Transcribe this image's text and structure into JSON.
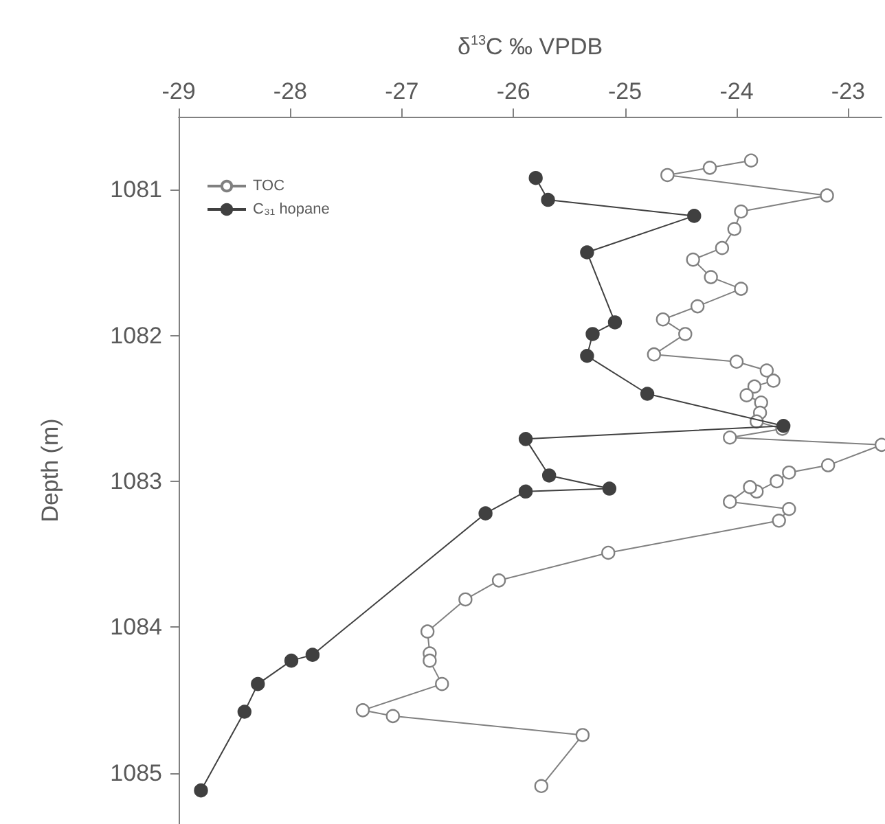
{
  "chart_data": {
    "type": "line",
    "xlabel": "δ$^{13}$C ‰ VPDB",
    "ylabel": "Depth (m)",
    "xlim": [
      -29,
      -22.7
    ],
    "xticks": [
      -29,
      -28,
      -27,
      -26,
      -25,
      -24,
      -23
    ],
    "ylim": [
      1085.35,
      1080.5
    ],
    "yticks": [
      1081,
      1082,
      1083,
      1084,
      1085
    ],
    "grid": false,
    "legend": "top left",
    "marker": "circle",
    "line_style": "solid",
    "series": [
      {
        "name": "TOC",
        "color": "#808080",
        "x": [
          -23.87,
          -24.24,
          -24.62,
          -23.19,
          -23.96,
          -24.02,
          -24.13,
          -24.39,
          -24.23,
          -23.96,
          -24.35,
          -24.66,
          -24.46,
          -24.74,
          -24.0,
          -23.73,
          -23.67,
          -23.84,
          -23.91,
          -23.78,
          -23.79,
          -23.82,
          -23.59,
          -24.06,
          -22.7,
          -23.18,
          -23.53,
          -23.64,
          -23.82,
          -23.88,
          -24.06,
          -23.53,
          -23.62,
          -25.15,
          -26.13,
          -26.43,
          -26.77,
          -26.75,
          -26.75,
          -26.64,
          -27.35,
          -27.08,
          -25.38,
          -25.75
        ],
        "values": [
          1080.8,
          1080.85,
          1080.9,
          1081.04,
          1081.15,
          1081.27,
          1081.4,
          1081.48,
          1081.6,
          1081.68,
          1081.8,
          1081.89,
          1081.99,
          1082.13,
          1082.18,
          1082.24,
          1082.31,
          1082.35,
          1082.41,
          1082.46,
          1082.53,
          1082.59,
          1082.64,
          1082.7,
          1082.75,
          1082.89,
          1082.94,
          1083.0,
          1083.07,
          1083.04,
          1083.14,
          1083.19,
          1083.27,
          1083.49,
          1083.68,
          1083.81,
          1084.03,
          1084.18,
          1084.23,
          1084.39,
          1084.57,
          1084.61,
          1084.74,
          1085.09
        ]
      },
      {
        "name": "C₃₁ hopane",
        "color": "#404040",
        "x": [
          -25.8,
          -25.69,
          -24.38,
          -25.34,
          -25.09,
          -25.29,
          -25.34,
          -24.8,
          -23.58,
          -25.89,
          -25.68,
          -25.14,
          -25.89,
          -26.25,
          -27.8,
          -27.99,
          -28.29,
          -28.41,
          -28.8
        ],
        "values": [
          1080.92,
          1081.07,
          1081.18,
          1081.43,
          1081.91,
          1081.99,
          1082.14,
          1082.4,
          1082.62,
          1082.71,
          1082.96,
          1083.05,
          1083.07,
          1083.22,
          1084.19,
          1084.23,
          1084.39,
          1084.58,
          1085.12
        ]
      }
    ]
  }
}
